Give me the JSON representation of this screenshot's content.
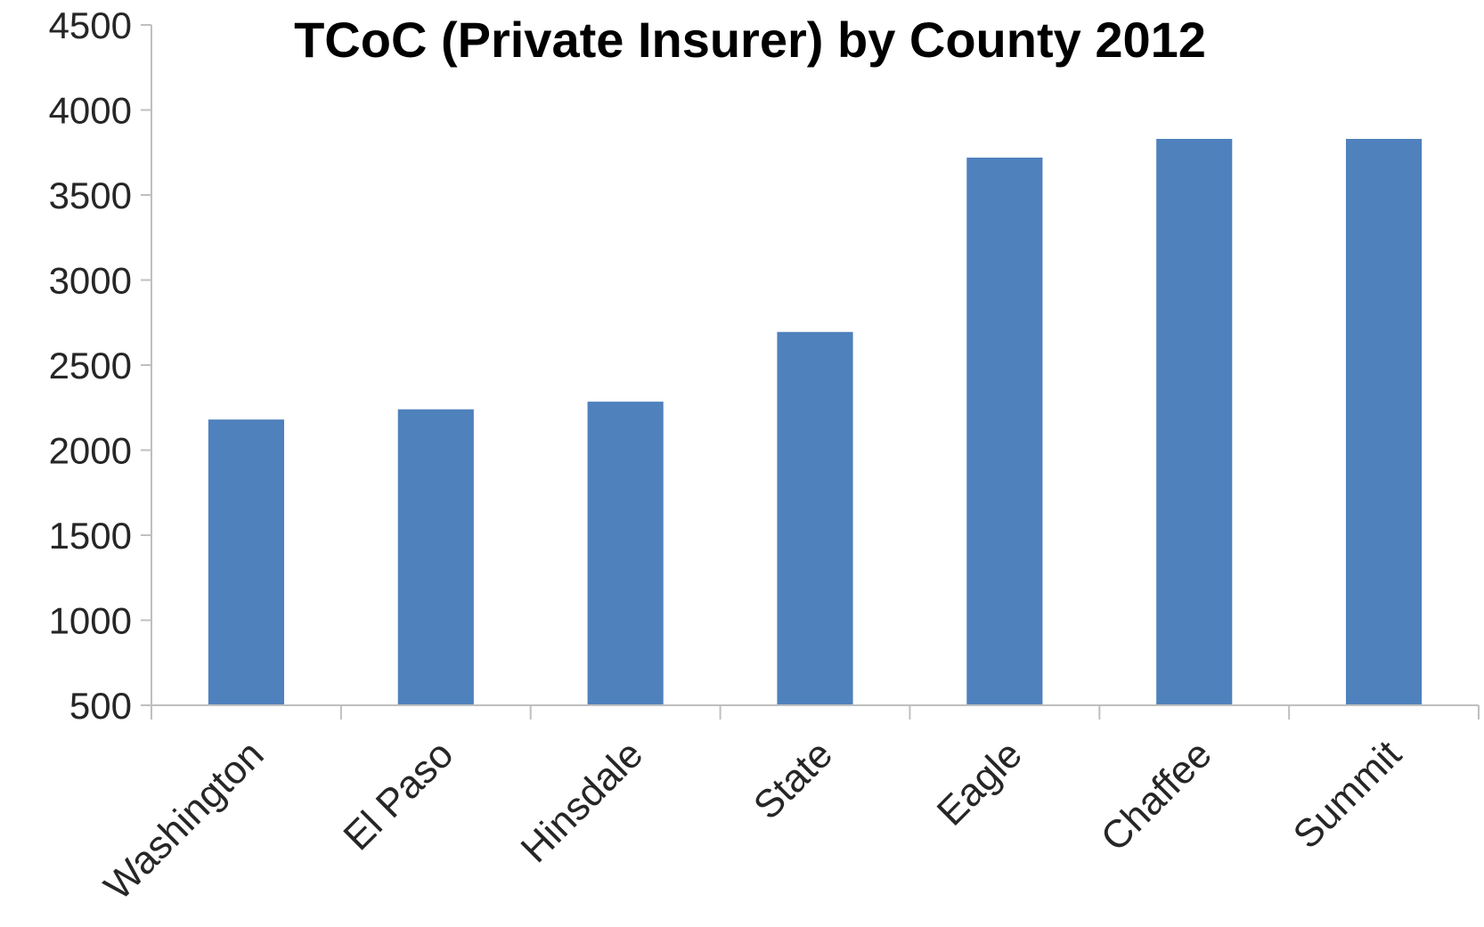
{
  "chart_data": {
    "type": "bar",
    "title": "TCoC (Private Insurer) by County 2012",
    "xlabel": "",
    "ylabel": "",
    "categories": [
      "Washington",
      "El Paso",
      "Hinsdale",
      "State",
      "Eagle",
      "Chaffee",
      "Summit"
    ],
    "values": [
      2180,
      2240,
      2285,
      2695,
      3720,
      3830,
      3830
    ],
    "ylim": [
      500,
      4500
    ],
    "yticks": [
      "500",
      "1000",
      "1500",
      "2000",
      "2500",
      "3000",
      "3500",
      "4000",
      "4500"
    ],
    "grid": false,
    "legend": "none",
    "bar_color": "#4f81bd"
  }
}
